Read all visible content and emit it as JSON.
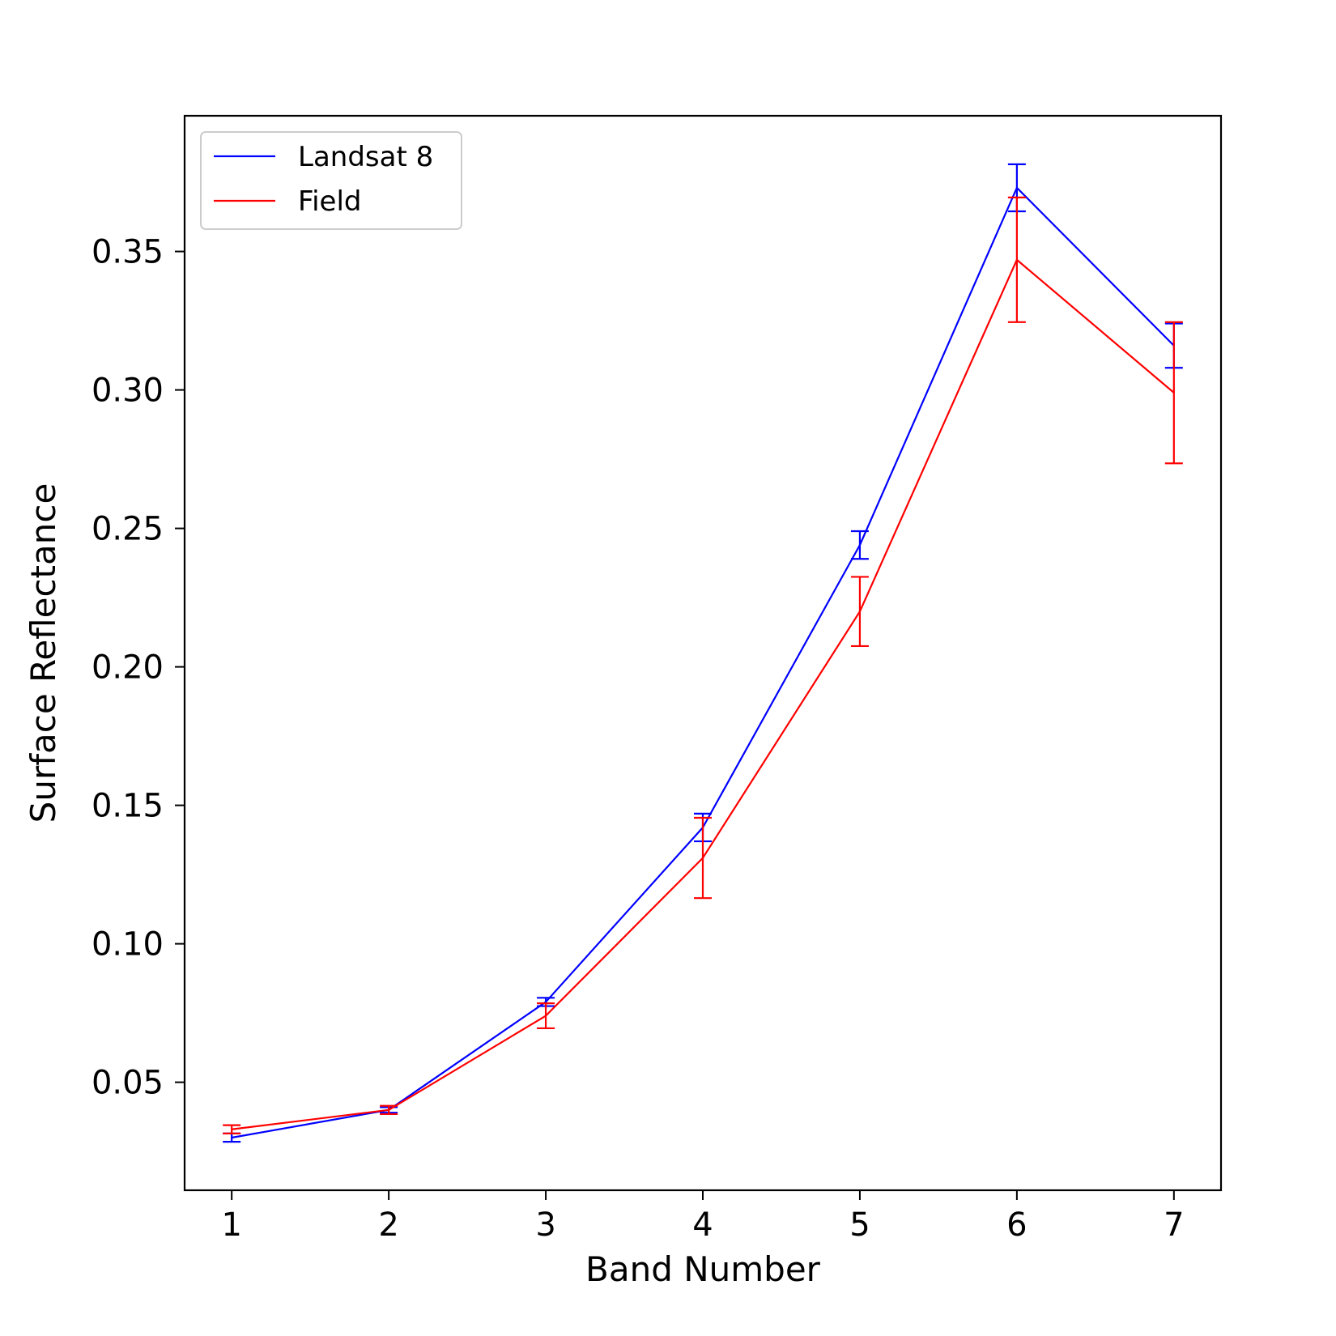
{
  "chart_data": {
    "type": "line",
    "title": "",
    "xlabel": "Band Number",
    "ylabel": "Surface Reflectance",
    "x": [
      1,
      2,
      3,
      4,
      5,
      6,
      7
    ],
    "xticks": [
      "1",
      "2",
      "3",
      "4",
      "5",
      "6",
      "7"
    ],
    "yticks": [
      "0.05",
      "0.10",
      "0.15",
      "0.20",
      "0.25",
      "0.30",
      "0.35"
    ],
    "xlim": [
      0.7,
      7.3
    ],
    "ylim": [
      0.011,
      0.399
    ],
    "grid": false,
    "legend_position": "upper-left",
    "series": [
      {
        "name": "Landsat 8",
        "color": "#0000ff",
        "values": [
          0.03,
          0.04,
          0.079,
          0.142,
          0.244,
          0.373,
          0.316
        ],
        "errors": [
          0.0015,
          0.001,
          0.0015,
          0.005,
          0.005,
          0.0085,
          0.008
        ]
      },
      {
        "name": "Field",
        "color": "#ff0000",
        "values": [
          0.033,
          0.04,
          0.074,
          0.131,
          0.22,
          0.347,
          0.299
        ],
        "errors": [
          0.0015,
          0.0015,
          0.0045,
          0.0145,
          0.0125,
          0.0225,
          0.0255
        ]
      }
    ]
  }
}
